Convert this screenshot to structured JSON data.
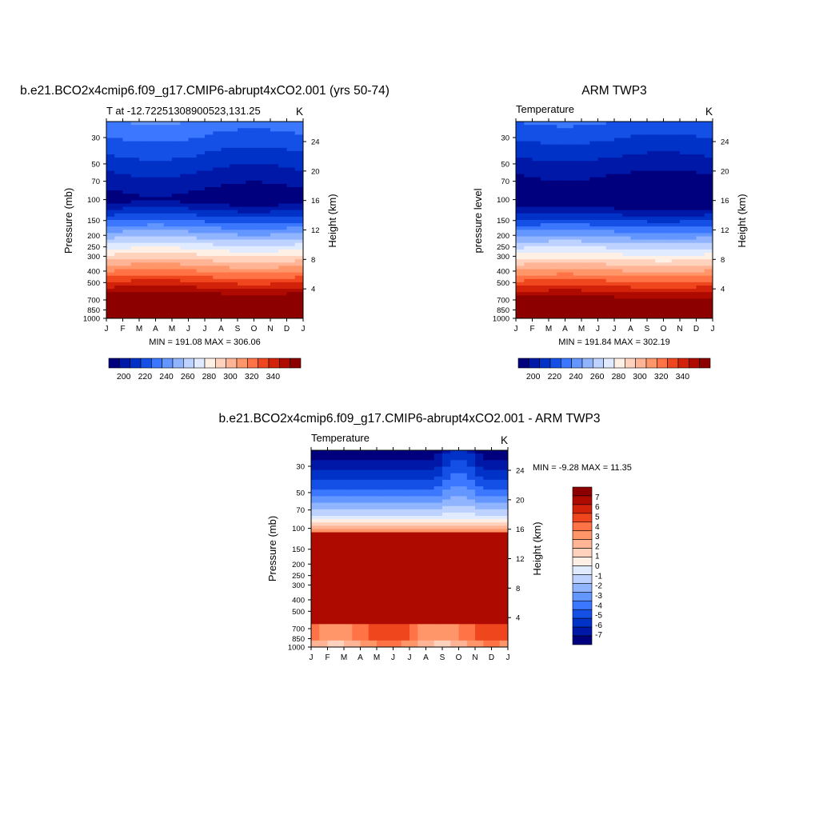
{
  "units": "K",
  "colors": {
    "temp_levels": [
      "#00007f",
      "#0018a8",
      "#0032c8",
      "#1450e6",
      "#3c78ff",
      "#6496ff",
      "#91b4ff",
      "#bed2ff",
      "#e1ebff",
      "#fff0e6",
      "#ffd2be",
      "#ffb496",
      "#ff9669",
      "#ff7346",
      "#f0461e",
      "#d2230a",
      "#af0a00",
      "#8c0000"
    ],
    "diff_levels": [
      "#00007f",
      "#0018a8",
      "#0032c8",
      "#1450e6",
      "#3c78ff",
      "#6496ff",
      "#91b4ff",
      "#bed2ff",
      "#e1ebff",
      "#fff0e6",
      "#ffd2be",
      "#ffb496",
      "#ff9669",
      "#ff7346",
      "#f0461e",
      "#d2230a",
      "#af0a00",
      "#8c0000"
    ]
  },
  "chart_data": [
    {
      "id": "model",
      "type": "heatmap",
      "title": "b.e21.BCO2x4cmip6.f09_g17.CMIP6-abrupt4xCO2.001 (yrs 50-74)",
      "subtitle_left": "T at -12.72251308900523,131.25",
      "subtitle_right": "K",
      "stats": "MIN = 191.08 MAX = 306.06",
      "ylabel": "Pressure (mb)",
      "ylabel_right": "Height (km)",
      "x_ticks": [
        "J",
        "F",
        "M",
        "A",
        "M",
        "J",
        "J",
        "A",
        "S",
        "O",
        "N",
        "D",
        "J"
      ],
      "pressure_ticks": [
        30,
        50,
        70,
        100,
        150,
        200,
        250,
        300,
        400,
        500,
        700,
        850,
        1000
      ],
      "height_ticks": [
        4,
        8,
        12,
        16,
        20,
        24
      ],
      "ylim": [
        1000,
        22
      ],
      "colorbar_labels": [
        "200",
        "220",
        "240",
        "260",
        "280",
        "300",
        "320",
        "340"
      ],
      "contour_levels": [
        195,
        200,
        205,
        210,
        215,
        220,
        225,
        230,
        235,
        240,
        245,
        250,
        255,
        260,
        265,
        270,
        275,
        280,
        285,
        290,
        295,
        300,
        305,
        310,
        315,
        320,
        325,
        330,
        335,
        340,
        345
      ]
    },
    {
      "id": "obs",
      "type": "heatmap",
      "title": "ARM TWP3",
      "subtitle_left": "Temperature",
      "subtitle_right": "K",
      "stats": "MIN = 191.84 MAX = 302.19",
      "ylabel": "pressure level",
      "ylabel_right": "Height (km)",
      "x_ticks": [
        "J",
        "F",
        "M",
        "A",
        "M",
        "J",
        "J",
        "A",
        "S",
        "O",
        "N",
        "D",
        "J"
      ],
      "pressure_ticks": [
        30,
        50,
        70,
        100,
        150,
        200,
        250,
        300,
        400,
        500,
        700,
        850,
        1000
      ],
      "height_ticks": [
        4,
        8,
        12,
        16,
        20,
        24
      ],
      "ylim": [
        1000,
        22
      ],
      "colorbar_labels": [
        "200",
        "220",
        "240",
        "260",
        "280",
        "300",
        "320",
        "340"
      ]
    },
    {
      "id": "diff",
      "type": "heatmap",
      "title": "b.e21.BCO2x4cmip6.f09_g17.CMIP6-abrupt4xCO2.001 - ARM TWP3",
      "subtitle_left": "Temperature",
      "subtitle_right": "K",
      "stats_label": "MIN = ",
      "stats": "MIN =  -9.28 MAX =  11.35",
      "ylabel": "Pressure (mb)",
      "ylabel_right": "Height (km)",
      "x_ticks": [
        "J",
        "F",
        "M",
        "A",
        "M",
        "J",
        "J",
        "A",
        "S",
        "O",
        "N",
        "D",
        "J"
      ],
      "pressure_ticks": [
        30,
        50,
        70,
        100,
        150,
        200,
        250,
        300,
        400,
        500,
        700,
        850,
        1000
      ],
      "height_ticks": [
        4,
        8,
        12,
        16,
        20,
        24
      ],
      "ylim": [
        1000,
        22
      ],
      "colorbar_labels": [
        "7",
        "6",
        "5",
        "4",
        "3",
        "2",
        "1",
        "0",
        "-1",
        "-2",
        "-3",
        "-4",
        "-5",
        "-6",
        "-7"
      ]
    }
  ]
}
